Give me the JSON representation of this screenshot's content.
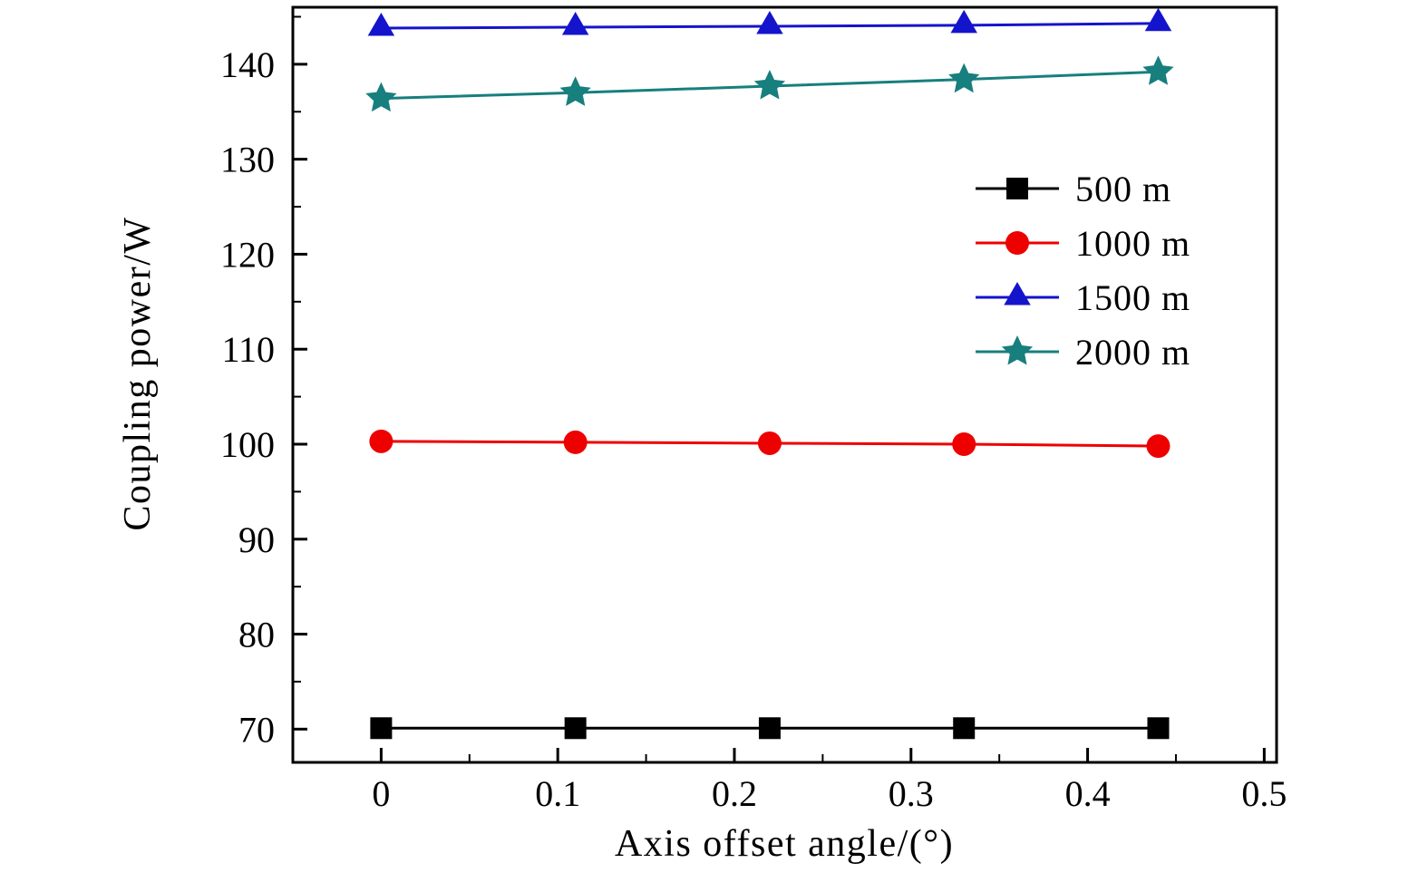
{
  "chart_data": {
    "type": "line",
    "title": "",
    "xlabel": "Axis offset angle/(°)",
    "ylabel": "Coupling power/W",
    "xlim": [
      -0.05,
      0.507
    ],
    "ylim": [
      66.5,
      146
    ],
    "x_ticks": [
      0,
      0.1,
      0.2,
      0.3,
      0.4,
      0.5
    ],
    "x_tick_labels": [
      "0",
      "0.1",
      "0.2",
      "0.3",
      "0.4",
      "0.5"
    ],
    "y_ticks": [
      70,
      80,
      90,
      100,
      110,
      120,
      130,
      140
    ],
    "y_tick_labels": [
      "70",
      "80",
      "90",
      "100",
      "110",
      "120",
      "130",
      "140"
    ],
    "x_minor_step": 0.05,
    "y_minor_step": 5,
    "grid": false,
    "legend_position": "upper-right",
    "x": [
      0,
      0.11,
      0.22,
      0.33,
      0.44
    ],
    "series": [
      {
        "name": "500 m",
        "marker": "square",
        "color": "#000000",
        "values": [
          70.1,
          70.1,
          70.1,
          70.1,
          70.1
        ]
      },
      {
        "name": "1000 m",
        "marker": "circle",
        "color": "#ee0000",
        "values": [
          100.3,
          100.2,
          100.1,
          100.0,
          99.8
        ]
      },
      {
        "name": "1500 m",
        "marker": "triangle",
        "color": "#1414cc",
        "values": [
          143.8,
          143.9,
          144.0,
          144.1,
          144.3
        ]
      },
      {
        "name": "2000 m",
        "marker": "star",
        "color": "#177f7e",
        "values": [
          136.4,
          137.0,
          137.7,
          138.4,
          139.2
        ]
      }
    ],
    "frame_color": "#000000"
  }
}
